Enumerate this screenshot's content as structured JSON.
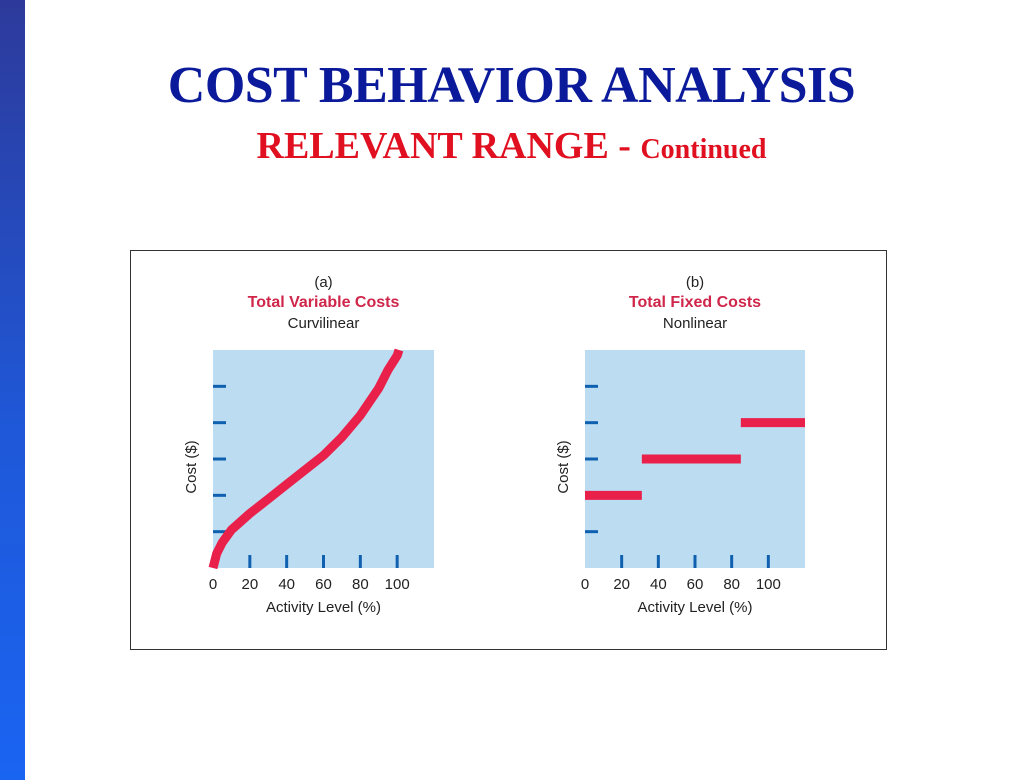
{
  "slide": {
    "title": "COST BEHAVIOR ANALYSIS",
    "subtitle_main": "RELEVANT RANGE - ",
    "subtitle_cont": "Continued"
  },
  "colors": {
    "title": "#0a1a9a",
    "subtitle": "#e01020",
    "plot_bg": "#bcdcf2",
    "series": "#e8204a",
    "tick": "#1060b0",
    "chart_title": "#d0264a"
  },
  "chart_data": [
    {
      "type": "line",
      "panel_label": "(a)",
      "title": "Total Variable Costs",
      "subtitle": "Curvilinear",
      "xlabel": "Activity Level (%)",
      "ylabel": "Cost ($)",
      "xticks": [
        0,
        20,
        40,
        60,
        80,
        100
      ],
      "xlim": [
        0,
        120
      ],
      "ylim": [
        0,
        6
      ],
      "y_tick_count": 5,
      "series": [
        {
          "x": [
            0,
            2,
            5,
            10,
            20,
            30,
            40,
            50,
            60,
            70,
            80,
            90,
            95,
            100,
            101
          ],
          "y": [
            0,
            0.4,
            0.7,
            1.05,
            1.5,
            1.9,
            2.3,
            2.7,
            3.1,
            3.6,
            4.2,
            4.95,
            5.45,
            5.85,
            6
          ]
        }
      ]
    },
    {
      "type": "line",
      "panel_label": "(b)",
      "title": "Total Fixed Costs",
      "subtitle": "Nonlinear",
      "xlabel": "Activity Level (%)",
      "ylabel": "Cost ($)",
      "xticks": [
        0,
        20,
        40,
        60,
        80,
        100
      ],
      "xlim": [
        0,
        120
      ],
      "ylim": [
        0,
        6
      ],
      "y_tick_count": 5,
      "series": [
        {
          "segments": [
            {
              "x": [
                0,
                31
              ],
              "y": 2
            },
            {
              "x": [
                31,
                85
              ],
              "y": 3
            },
            {
              "x": [
                85,
                120
              ],
              "y": 4
            }
          ]
        }
      ]
    }
  ]
}
